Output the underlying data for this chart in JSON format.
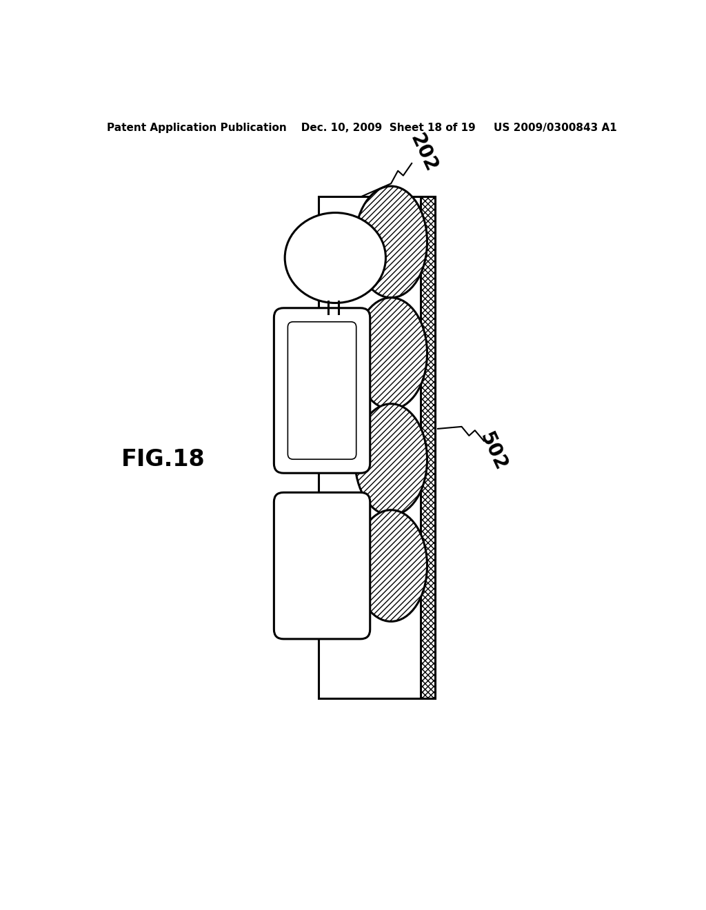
{
  "bg_color": "#ffffff",
  "line_color": "#000000",
  "header_text": "Patent Application Publication    Dec. 10, 2009  Sheet 18 of 19     US 2009/0300843 A1",
  "fig_label": "FIG.18",
  "label_202": "202",
  "label_502": "502",
  "title_fontsize": 11,
  "label_fontsize": 20,
  "figlabel_fontsize": 24
}
